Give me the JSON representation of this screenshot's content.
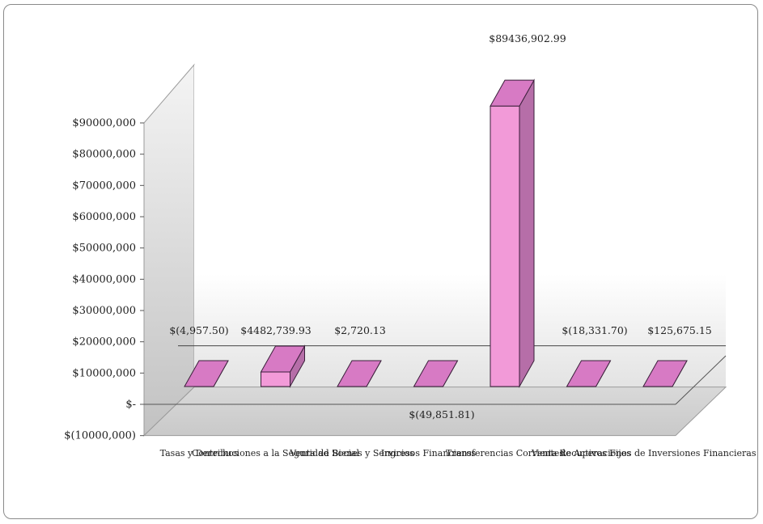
{
  "chart_data": {
    "type": "bar",
    "style": "3d-column",
    "title": "",
    "xlabel": "",
    "ylabel": "",
    "ylim": [
      -10000000,
      90000000
    ],
    "y_ticks": [
      {
        "value": 90000000,
        "label": "$90000,000"
      },
      {
        "value": 80000000,
        "label": "$80000,000"
      },
      {
        "value": 70000000,
        "label": "$70000,000"
      },
      {
        "value": 60000000,
        "label": "$60000,000"
      },
      {
        "value": 50000000,
        "label": "$50000,000"
      },
      {
        "value": 40000000,
        "label": "$40000,000"
      },
      {
        "value": 30000000,
        "label": "$30000,000"
      },
      {
        "value": 20000000,
        "label": "$20000,000"
      },
      {
        "value": 10000000,
        "label": "$10000,000"
      },
      {
        "value": 0,
        "label": "$-"
      },
      {
        "value": -10000000,
        "label": "$(10000,000)"
      }
    ],
    "categories": [
      "Tasas y Derechos",
      "Contribuciones a la Seguridad Social",
      "Venta de Bienes y Servicios",
      "Ingresos Financieros",
      "Transferencias Corrientes",
      "Venta de Activos Fijos",
      "Recuperaciones de Inversiones Financieras"
    ],
    "values": [
      -4957.5,
      4482739.93,
      2720.13,
      -49851.81,
      89436902.99,
      -18331.7,
      125675.15
    ],
    "data_labels": [
      "$(4,957.50)",
      "$4482,739.93",
      "$2,720.13",
      "$(49,851.81)",
      "$89436,902.99",
      "$(18,331.70)",
      "$125,675.15"
    ],
    "grid": false,
    "legend": "none",
    "colors": {
      "bar_front": "#f29ad8",
      "bar_top": "#d77ac4",
      "bar_side": "#b66ea8",
      "bar_stroke": "#3a1f3a",
      "wall_left": "#cfcfcf",
      "wall_back": "#ffffff",
      "floor": "#d6d6d6"
    }
  }
}
